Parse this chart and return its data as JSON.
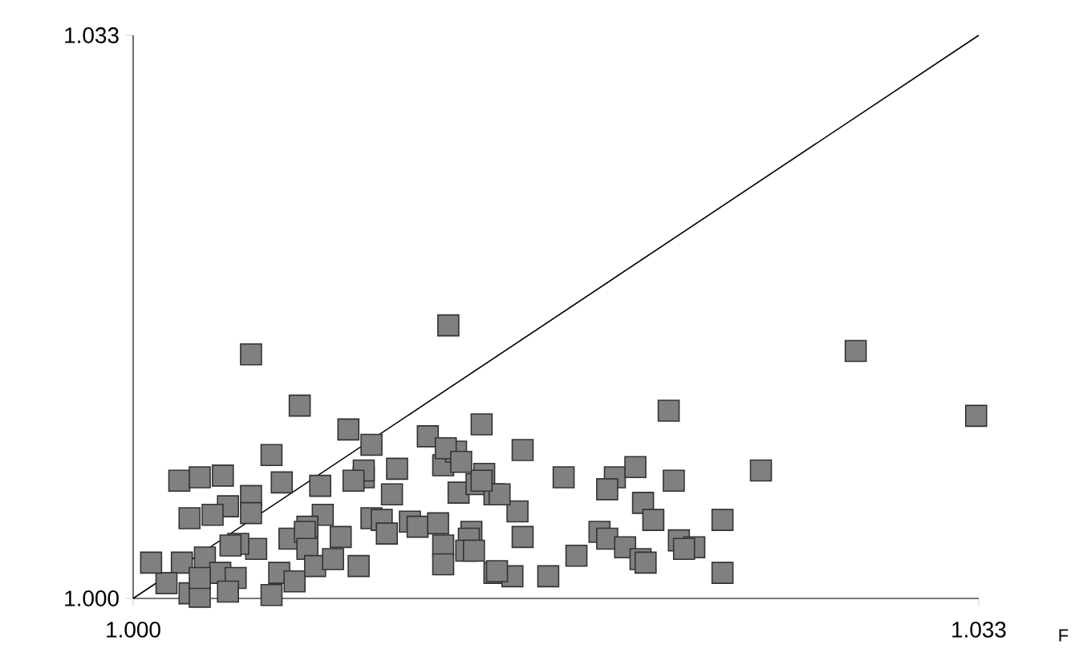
{
  "chart_data": {
    "type": "scatter",
    "xlabel": "F",
    "xlim": [
      1,
      1.033
    ],
    "ylim": [
      1,
      1.033
    ],
    "xticks": [
      {
        "value": 1,
        "label": "1.000"
      },
      {
        "value": 1.033,
        "label": "1.033"
      }
    ],
    "yticks": [
      {
        "value": 1,
        "label": "1.000"
      },
      {
        "value": 1.033,
        "label": "1.033"
      }
    ],
    "marker": "square",
    "series": [
      {
        "color": "#808080",
        "x": [
          1.0046,
          1.0123,
          1.0282,
          1.0329,
          1.0065,
          1.0084,
          1.0093,
          1.0054,
          1.0115,
          1.0136,
          1.0018,
          1.0026,
          1.0035,
          1.0058,
          1.0073,
          1.0046,
          1.0046,
          1.0037,
          1.0022,
          1.0031,
          1.009,
          1.009,
          1.0086,
          1.0103,
          1.0101,
          1.0121,
          1.0126,
          1.0122,
          1.0128,
          1.0127,
          1.0134,
          1.0137,
          1.0141,
          1.0074,
          1.0068,
          1.0061,
          1.0081,
          1.0093,
          1.0097,
          1.0099,
          1.0108,
          1.0111,
          1.0119,
          1.0121,
          1.0121,
          1.0132,
          1.0131,
          1.013,
          1.0133,
          1.0141,
          1.0048,
          1.0041,
          1.0038,
          1.0028,
          1.0034,
          1.004,
          1.0037,
          1.0022,
          1.0026,
          1.0019,
          1.0026,
          1.0013,
          1.0007,
          1.0057,
          1.0063,
          1.0054,
          1.0067,
          1.0068,
          1.0071,
          1.0078,
          1.0088,
          1.0152,
          1.0168,
          1.0188,
          1.0196,
          1.0185,
          1.0211,
          1.0209,
          1.0245,
          1.0199,
          1.0203,
          1.023,
          1.023,
          1.015,
          1.0152,
          1.0173,
          1.0182,
          1.0185,
          1.0192,
          1.0198,
          1.02,
          1.0213,
          1.0219,
          1.0215,
          1.0148,
          1.0142,
          1.0162,
          1.0143,
          1.0136
        ],
        "values": [
          1.0143,
          1.016,
          1.0145,
          1.0107,
          1.0113,
          1.0099,
          1.009,
          1.0084,
          1.0095,
          1.0102,
          1.0069,
          1.0071,
          1.0072,
          1.0068,
          1.0066,
          1.006,
          1.005,
          1.0054,
          1.0047,
          1.0049,
          1.0071,
          1.0075,
          1.0069,
          1.0076,
          1.0061,
          1.0078,
          1.0086,
          1.0088,
          1.008,
          1.0062,
          1.0067,
          1.0073,
          1.0061,
          1.0049,
          1.0042,
          1.0035,
          1.0036,
          1.0047,
          1.0046,
          1.0038,
          1.0045,
          1.0042,
          1.0044,
          1.0031,
          1.002,
          1.0039,
          1.0035,
          1.0028,
          1.0028,
          1.0015,
          1.0029,
          1.0032,
          1.0031,
          1.0024,
          1.0015,
          1.0012,
          1.0004,
          1.0003,
          1.0001,
          1.0021,
          1.0012,
          1.0009,
          1.0021,
          1.0015,
          1.001,
          1.0002,
          1.0039,
          1.0029,
          1.0019,
          1.0023,
          1.0019,
          1.0087,
          1.0071,
          1.0071,
          1.0077,
          1.0064,
          1.0069,
          1.011,
          1.0075,
          1.0056,
          1.0046,
          1.0046,
          1.0015,
          1.0051,
          1.0036,
          1.0025,
          1.0039,
          1.0035,
          1.003,
          1.0023,
          1.0021,
          1.0034,
          1.003,
          1.0029,
          1.0013,
          1.0016,
          1.0013,
          1.0061,
          1.0069
        ]
      },
      {
        "type": "line",
        "color": "#000000",
        "marker": "none",
        "x": [
          1,
          1.033
        ],
        "values": [
          1,
          1.033
        ]
      }
    ]
  }
}
